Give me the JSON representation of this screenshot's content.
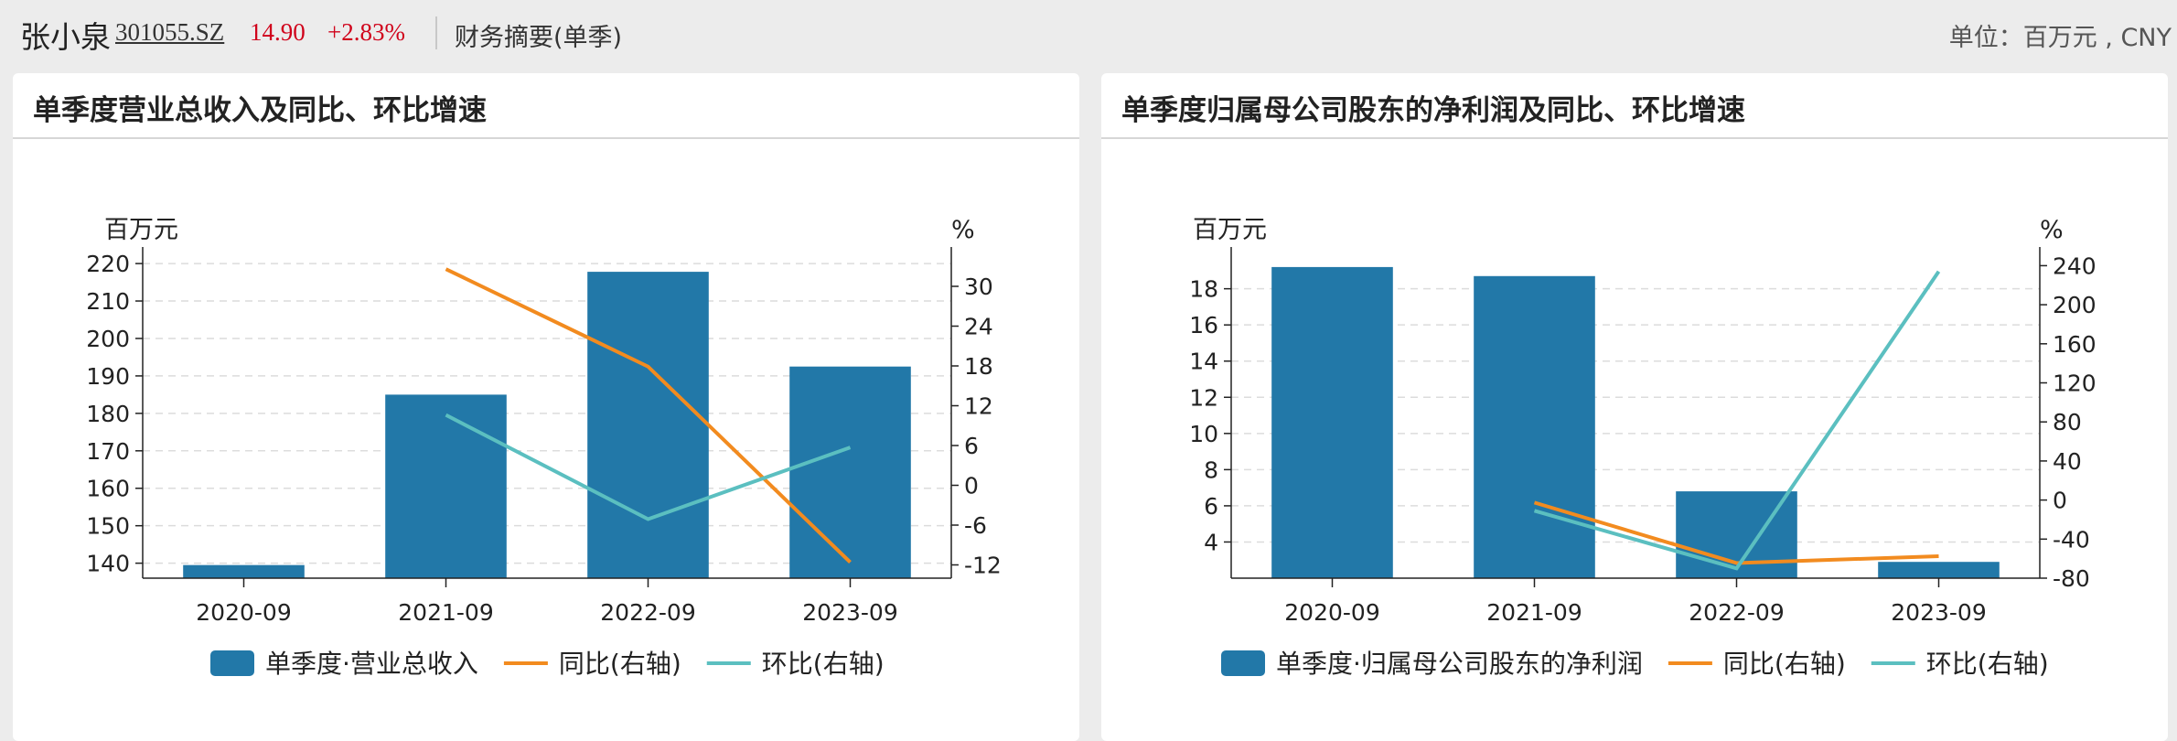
{
  "header": {
    "name": "张小泉",
    "code": "301055.SZ",
    "price": "14.90",
    "change": "+2.83%",
    "section": "财务摘要(单季)",
    "unit": "单位：百万元 , CNY"
  },
  "colors": {
    "bar": "#2278a8",
    "yoy": "#f28b1f",
    "qoq": "#5bbfc0",
    "up": "#d0021b"
  },
  "charts": [
    {
      "title": "单季度营业总收入及同比、环比增速"
    },
    {
      "title": "单季度归属母公司股东的净利润及同比、环比增速"
    }
  ],
  "chart_data": [
    {
      "type": "bar",
      "title": "单季度营业总收入及同比、环比增速",
      "ylabel": "百万元",
      "y2label": "%",
      "categories": [
        "2020-09",
        "2021-09",
        "2022-09",
        "2023-09"
      ],
      "ylim": [
        136,
        221
      ],
      "yticks": [
        140,
        150,
        160,
        170,
        180,
        190,
        200,
        210,
        220
      ],
      "y2lim": [
        -14,
        34
      ],
      "y2ticks": [
        -12,
        -6,
        0,
        6,
        12,
        18,
        24,
        30
      ],
      "grid": true,
      "legend": "bottom",
      "series": [
        {
          "name": "单季度·营业总收入",
          "type": "bar",
          "axis": "left",
          "values": [
            139.5,
            185,
            217.8,
            192.5
          ]
        },
        {
          "name": "同比(右轴)",
          "type": "line",
          "axis": "right",
          "values": [
            null,
            32.6,
            17.9,
            -11.6
          ]
        },
        {
          "name": "环比(右轴)",
          "type": "line",
          "axis": "right",
          "values": [
            null,
            10.6,
            -5.1,
            5.7
          ]
        }
      ]
    },
    {
      "type": "bar",
      "title": "单季度归属母公司股东的净利润及同比、环比增速",
      "ylabel": "百万元",
      "y2label": "%",
      "categories": [
        "2020-09",
        "2021-09",
        "2022-09",
        "2023-09"
      ],
      "ylim": [
        2,
        19.6
      ],
      "yticks": [
        4,
        6,
        8,
        10,
        12,
        14,
        16,
        18
      ],
      "y2lim": [
        -80,
        246
      ],
      "y2ticks": [
        -80,
        -40,
        0,
        40,
        80,
        120,
        160,
        200,
        240
      ],
      "grid": true,
      "legend": "bottom",
      "series": [
        {
          "name": "单季度·归属母公司股东的净利润",
          "type": "bar",
          "axis": "left",
          "values": [
            19.2,
            18.7,
            6.8,
            2.9
          ]
        },
        {
          "name": "同比(右轴)",
          "type": "line",
          "axis": "right",
          "values": [
            null,
            -2.6,
            -64.5,
            -57.5
          ]
        },
        {
          "name": "环比(右轴)",
          "type": "line",
          "axis": "right",
          "values": [
            null,
            -11,
            -70,
            234
          ]
        }
      ]
    }
  ]
}
